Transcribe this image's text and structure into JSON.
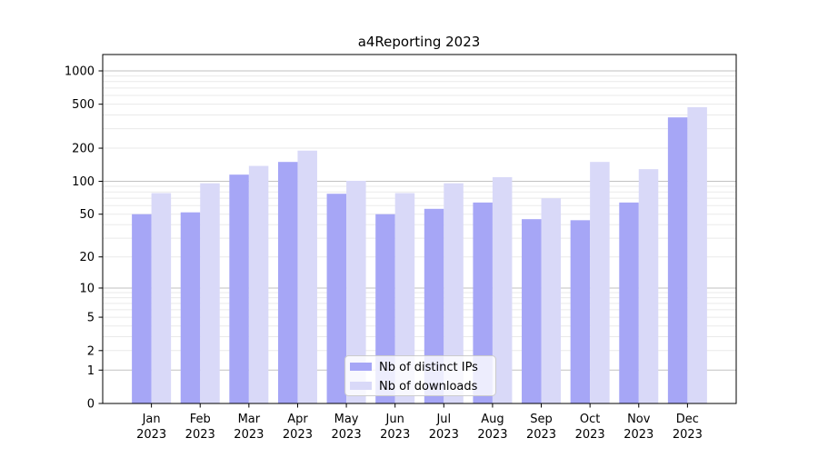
{
  "chart_data": {
    "type": "bar",
    "title": "a4Reporting 2023",
    "scale": "symlog (log10(1+v))",
    "year_label": "2023",
    "categories": [
      "Jan",
      "Feb",
      "Mar",
      "Apr",
      "May",
      "Jun",
      "Jul",
      "Aug",
      "Sep",
      "Oct",
      "Nov",
      "Dec"
    ],
    "series": [
      {
        "name": "Nb of distinct IPs",
        "color": "#a6a6f6",
        "values": [
          50,
          52,
          115,
          150,
          77,
          50,
          56,
          64,
          45,
          44,
          64,
          380
        ]
      },
      {
        "name": "Nb of downloads",
        "color": "#d9d9f8",
        "values": [
          78,
          96,
          138,
          190,
          101,
          78,
          96,
          109,
          70,
          150,
          129,
          470
        ]
      }
    ],
    "yticks": [
      0,
      1,
      2,
      5,
      10,
      20,
      50,
      100,
      200,
      500,
      1000
    ],
    "ylim": [
      0,
      1000
    ],
    "xlabel": "",
    "ylabel": "",
    "grid": "horizontal major+minor",
    "legend_position": "lower center inside plot",
    "colors": {
      "bar_ips": "#a6a6f6",
      "bar_downloads": "#d9d9f8",
      "grid_major": "#c2c2c2",
      "grid_minor": "#eaeaea",
      "spine": "#000000",
      "background": "#ffffff"
    }
  }
}
